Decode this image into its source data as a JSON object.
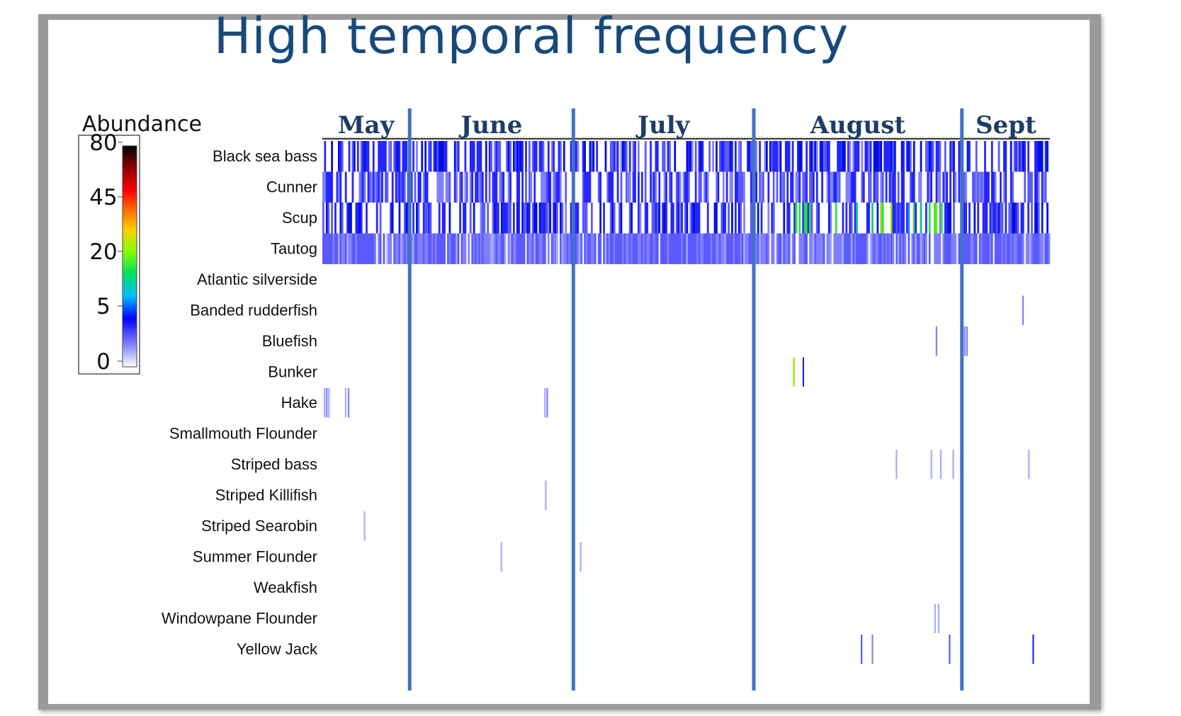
{
  "title": "High temporal frequency",
  "colors": {
    "title": "#17497c",
    "month_text": "#1c3d66",
    "divider": "#4472c4",
    "frame": "#9a9a9a"
  },
  "chart_data": {
    "type": "heatmap",
    "title": "High temporal frequency",
    "legend": {
      "title": "Abundance",
      "ticks": [
        "80",
        "45",
        "20",
        "5",
        "0"
      ],
      "tick_values": [
        80,
        45,
        20,
        5,
        0
      ],
      "colormap": [
        "#ffffff",
        "#c8c8ff",
        "#6060ff",
        "#0000ff",
        "#00c0ff",
        "#00ff80",
        "#80ff00",
        "#ffff00",
        "#ff8000",
        "#ff0000",
        "#800000",
        "#000000"
      ]
    },
    "months": [
      "May",
      "June",
      "July",
      "August",
      "Sept"
    ],
    "month_boundaries": [
      0.12,
      0.345,
      0.593,
      0.879
    ],
    "species": [
      "Black sea bass",
      "Cunner",
      "Scup",
      "Tautog",
      "Atlantic silverside",
      "Banded rudderfish",
      "Bluefish",
      "Bunker",
      "Hake",
      "Smallmouth Flounder",
      "Striped bass",
      "Striped Killifish",
      "Striped Searobin",
      "Summer Flounder",
      "Weakfish",
      "Windowpane Flounder",
      "Yellow Jack"
    ],
    "dense_rows": {
      "Black sea bass": {
        "density": 0.62,
        "base": 4,
        "hotspots": []
      },
      "Cunner": {
        "density": 0.58,
        "base": 3,
        "hotspots": []
      },
      "Scup": {
        "density": 0.55,
        "base": 4,
        "hotspots": [
          [
            0.65,
            0.87,
            12
          ]
        ]
      },
      "Tautog": {
        "density": 0.92,
        "base": 2,
        "hotspots": []
      }
    },
    "sparse_events": {
      "Banded rudderfish": [
        [
          0.962,
          2
        ]
      ],
      "Bluefish": [
        [
          0.843,
          2
        ],
        [
          0.882,
          2
        ],
        [
          0.885,
          2
        ]
      ],
      "Bunker": [
        [
          0.647,
          15
        ],
        [
          0.66,
          4
        ]
      ],
      "Hake": [
        [
          0.002,
          1
        ],
        [
          0.005,
          2
        ],
        [
          0.008,
          1
        ],
        [
          0.031,
          1
        ],
        [
          0.035,
          2
        ],
        [
          0.305,
          1
        ],
        [
          0.308,
          2
        ]
      ],
      "Striped bass": [
        [
          0.788,
          1
        ],
        [
          0.836,
          1
        ],
        [
          0.849,
          1
        ],
        [
          0.866,
          1
        ],
        [
          0.97,
          1
        ]
      ],
      "Striped Killifish": [
        [
          0.306,
          1
        ]
      ],
      "Striped Searobin": [
        [
          0.057,
          1
        ]
      ],
      "Summer Flounder": [
        [
          0.245,
          1
        ],
        [
          0.354,
          1
        ]
      ],
      "Windowpane Flounder": [
        [
          0.841,
          1
        ],
        [
          0.846,
          1
        ]
      ],
      "Yellow Jack": [
        [
          0.74,
          3
        ],
        [
          0.755,
          2
        ],
        [
          0.861,
          3
        ],
        [
          0.976,
          4
        ]
      ]
    }
  }
}
